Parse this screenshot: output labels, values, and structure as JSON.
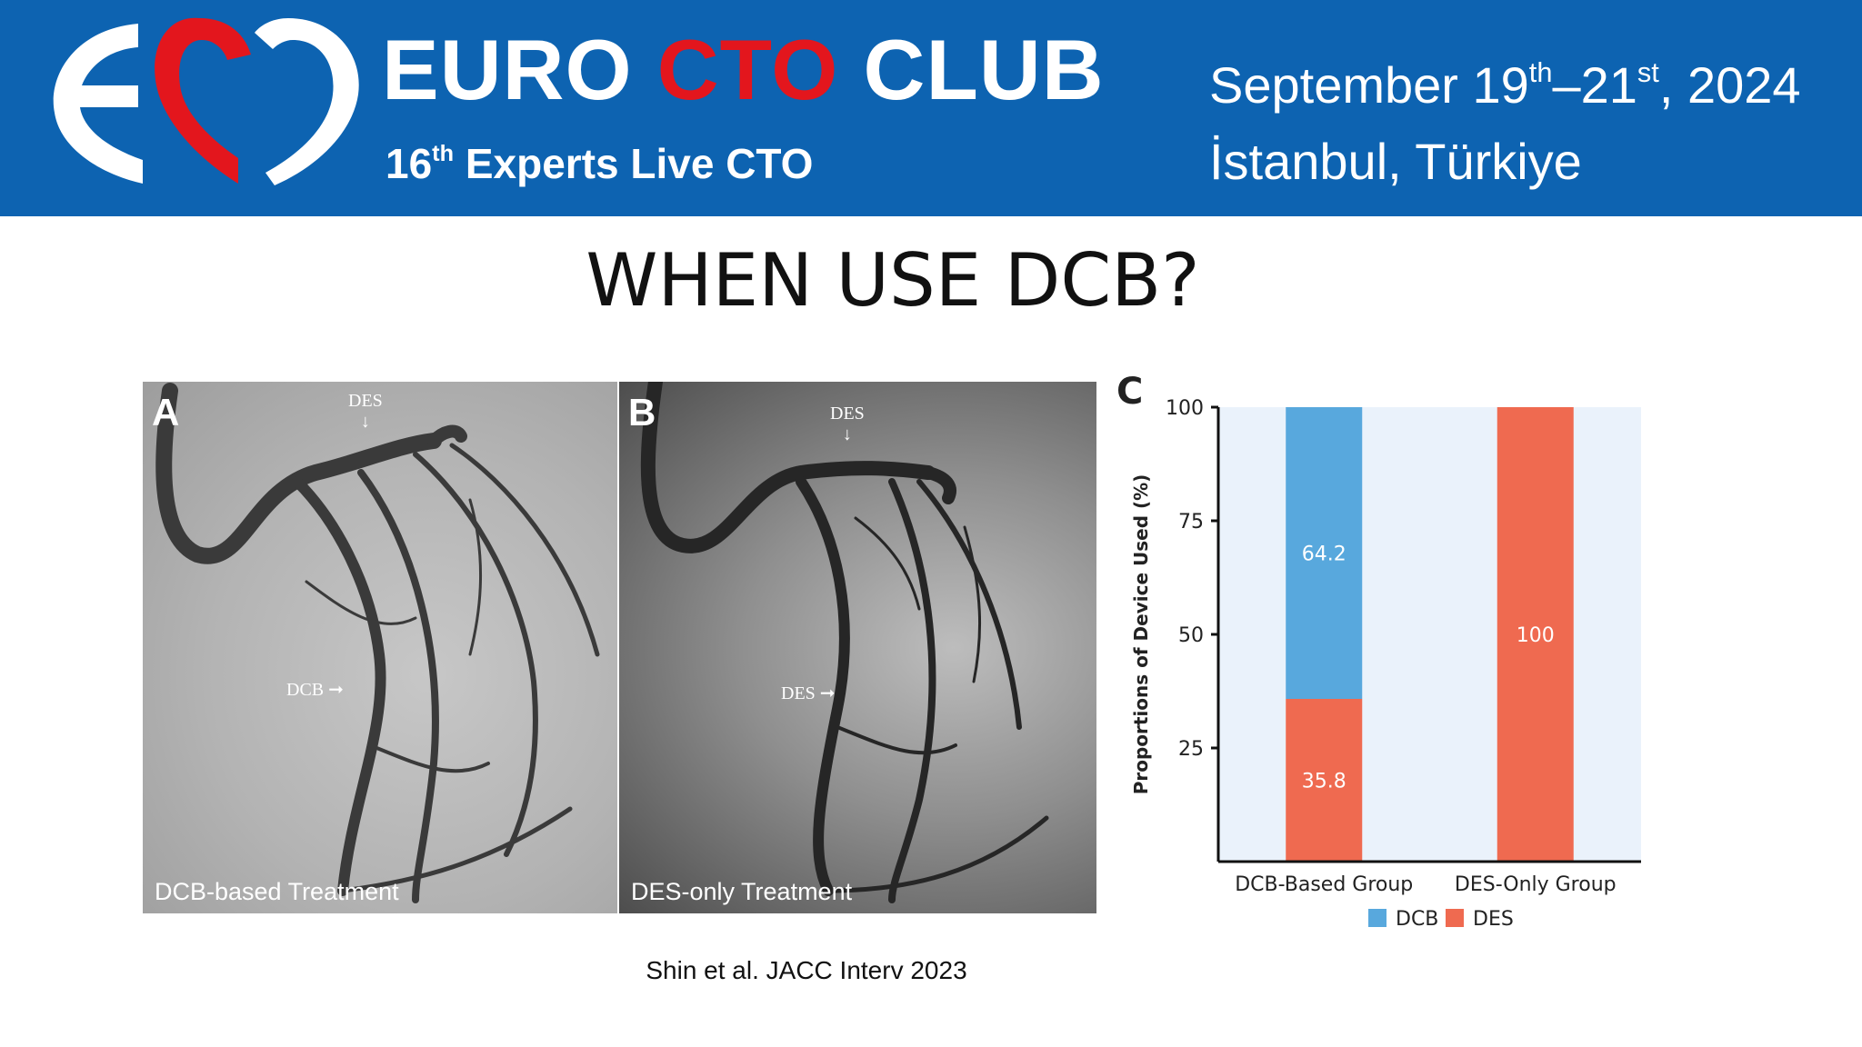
{
  "banner": {
    "brand_part1": "EURO ",
    "brand_part2": "CTO",
    "brand_part3": " CLUB",
    "subtitle_number": "16",
    "subtitle_sup": "th",
    "subtitle_rest": " Experts Live CTO",
    "date_part1": "September 19",
    "date_sup1": "th",
    "date_part2": "–21",
    "date_sup2": "st",
    "date_part3": ", 2024",
    "place": "İstanbul, Türkiye",
    "colors": {
      "background": "#0d63b1",
      "accent": "#e3161d",
      "text": "#ffffff"
    }
  },
  "slide": {
    "title": "WHEN USE DCB?",
    "citation": "Shin et al. JACC Interv 2023"
  },
  "panels": [
    {
      "letter": "A",
      "caption": "DCB-based Treatment",
      "arrows": [
        "DES",
        "DCB"
      ]
    },
    {
      "letter": "B",
      "caption": "DES-only Treatment",
      "arrows": [
        "DES",
        "DES"
      ]
    }
  ],
  "chart_data": {
    "type": "bar",
    "stacked": true,
    "panel_letter": "C",
    "categories": [
      "DCB-Based Group",
      "DES-Only Group"
    ],
    "series": [
      {
        "name": "DES",
        "values": [
          35.8,
          100
        ],
        "color": "#ef6a50"
      },
      {
        "name": "DCB",
        "values": [
          64.2,
          0
        ],
        "color": "#58a8dd"
      }
    ],
    "data_labels": [
      [
        "35.8",
        "64.2"
      ],
      [
        "100"
      ]
    ],
    "ylabel": "Proportions of Device Used (%)",
    "xlabel": "",
    "ylim": [
      0,
      100
    ],
    "yticks": [
      25,
      50,
      75,
      100
    ],
    "legend": [
      "DCB",
      "DES"
    ],
    "legend_position": "bottom",
    "plot_background": "#eaf2fb",
    "grid": false
  }
}
